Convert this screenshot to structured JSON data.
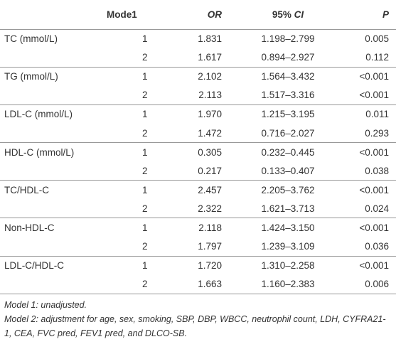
{
  "table": {
    "headers": {
      "variable": "",
      "mode": "Mode1",
      "or": "OR",
      "ci_prefix": "95% ",
      "ci_italic": "CI",
      "p": "P"
    },
    "groups": [
      {
        "variable": "TC (mmol/L)",
        "rows": [
          {
            "mode": "1",
            "or": "1.831",
            "ci": "1.198–2.799",
            "p": "0.005"
          },
          {
            "mode": "2",
            "or": "1.617",
            "ci": "0.894–2.927",
            "p": "0.112"
          }
        ]
      },
      {
        "variable": "TG (mmol/L)",
        "rows": [
          {
            "mode": "1",
            "or": "2.102",
            "ci": "1.564–3.432",
            "p": "<0.001"
          },
          {
            "mode": "2",
            "or": "2.113",
            "ci": "1.517–3.316",
            "p": "<0.001"
          }
        ]
      },
      {
        "variable": "LDL-C (mmol/L)",
        "rows": [
          {
            "mode": "1",
            "or": "1.970",
            "ci": "1.215–3.195",
            "p": "0.011"
          },
          {
            "mode": "2",
            "or": "1.472",
            "ci": "0.716–2.027",
            "p": "0.293"
          }
        ]
      },
      {
        "variable": "HDL-C (mmol/L)",
        "rows": [
          {
            "mode": "1",
            "or": "0.305",
            "ci": "0.232–0.445",
            "p": "<0.001"
          },
          {
            "mode": "2",
            "or": "0.217",
            "ci": "0.133–0.407",
            "p": "0.038"
          }
        ]
      },
      {
        "variable": "TC/HDL-C",
        "rows": [
          {
            "mode": "1",
            "or": "2.457",
            "ci": "2.205–3.762",
            "p": "<0.001"
          },
          {
            "mode": "2",
            "or": "2.322",
            "ci": "1.621–3.713",
            "p": "0.024"
          }
        ]
      },
      {
        "variable": "Non-HDL-C",
        "rows": [
          {
            "mode": "1",
            "or": "2.118",
            "ci": "1.424–3.150",
            "p": "<0.001"
          },
          {
            "mode": "2",
            "or": "1.797",
            "ci": "1.239–3.109",
            "p": "0.036"
          }
        ]
      },
      {
        "variable": "LDL-C/HDL-C",
        "rows": [
          {
            "mode": "1",
            "or": "1.720",
            "ci": "1.310–2.258",
            "p": "<0.001"
          },
          {
            "mode": "2",
            "or": "1.663",
            "ci": "1.160–2.383",
            "p": "0.006"
          }
        ]
      }
    ]
  },
  "notes": {
    "model1": "Model 1: unadjusted.",
    "model2": "Model 2: adjustment for age, sex, smoking, SBP, DBP, WBCC, neutrophil count, LDH, CYFRA21-1, CEA, FVC pred, FEV1 pred, and DLCO-SB."
  }
}
